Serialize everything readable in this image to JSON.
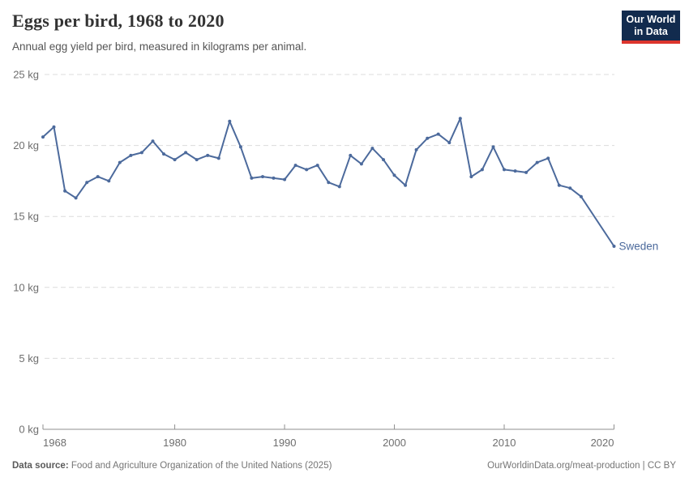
{
  "header": {
    "title": "Eggs per bird, 1968 to 2020",
    "subtitle": "Annual egg yield per bird, measured in kilograms per animal."
  },
  "logo": {
    "line1": "Our World",
    "line2": "in Data"
  },
  "colors": {
    "series_blue": "#4C6A9C",
    "logo_navy": "#122B4E",
    "logo_red": "#DC352D",
    "gridline": "#dcdcdc",
    "axis": "#8f8f8f",
    "tick_label": "#6e6e6e"
  },
  "chart_data": {
    "type": "line",
    "title": "Eggs per bird, 1968 to 2020",
    "subtitle": "Annual egg yield per bird, measured in kilograms per animal.",
    "xlabel": "",
    "ylabel": "",
    "unit": "kg",
    "xlim": [
      1968,
      2020
    ],
    "ylim": [
      0,
      25
    ],
    "x_ticks": [
      1968,
      1980,
      1990,
      2000,
      2010,
      2020
    ],
    "x_tick_labels": [
      "1968",
      "1980",
      "1990",
      "2000",
      "2010",
      "2020"
    ],
    "y_ticks": [
      0,
      5,
      10,
      15,
      20,
      25
    ],
    "y_tick_labels": [
      "0 kg",
      "5 kg",
      "10 kg",
      "15 kg",
      "20 kg",
      "25 kg"
    ],
    "grid": "horizontal-dashed",
    "legend_position": "end-of-line-label",
    "x": [
      1968,
      1969,
      1970,
      1971,
      1972,
      1973,
      1974,
      1975,
      1976,
      1977,
      1978,
      1979,
      1980,
      1981,
      1982,
      1983,
      1984,
      1985,
      1986,
      1987,
      1988,
      1989,
      1990,
      1991,
      1992,
      1993,
      1994,
      1995,
      1996,
      1997,
      1998,
      1999,
      2000,
      2001,
      2002,
      2003,
      2004,
      2005,
      2006,
      2007,
      2008,
      2009,
      2010,
      2011,
      2012,
      2013,
      2014,
      2015,
      2016,
      2017,
      2018,
      2019,
      2020
    ],
    "series": [
      {
        "name": "Sweden",
        "color": "#4C6A9C",
        "values": [
          20.6,
          21.3,
          16.8,
          16.3,
          17.4,
          17.8,
          17.5,
          18.8,
          19.3,
          19.5,
          20.3,
          19.4,
          19.0,
          19.5,
          19.0,
          19.3,
          19.1,
          21.7,
          19.9,
          17.7,
          17.8,
          17.7,
          17.6,
          18.6,
          18.3,
          18.6,
          17.4,
          17.1,
          19.3,
          18.7,
          19.8,
          19.0,
          17.9,
          17.2,
          19.7,
          20.5,
          20.8,
          20.2,
          21.9,
          17.8,
          18.3,
          19.9,
          18.3,
          18.2,
          18.1,
          18.8,
          19.1,
          17.2,
          17.0,
          16.4,
          null,
          null,
          12.9
        ]
      }
    ]
  },
  "footer": {
    "source_label": "Data source:",
    "source_text": "Food and Agriculture Organization of the United Nations (2025)",
    "link_text": "OurWorldinData.org/meat-production | CC BY"
  }
}
